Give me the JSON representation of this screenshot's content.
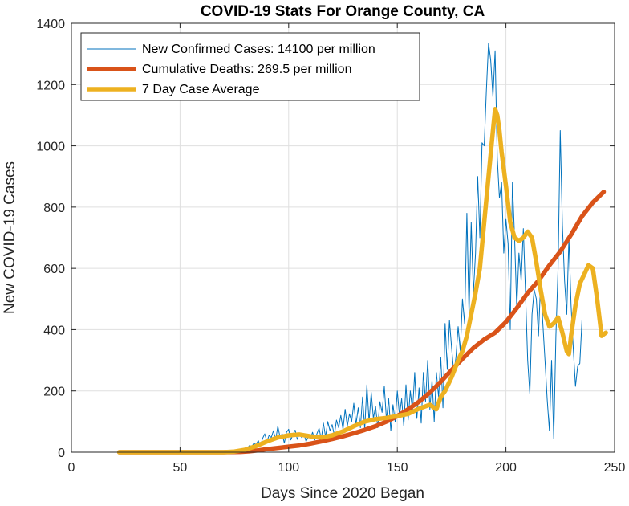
{
  "chart_data": {
    "type": "line",
    "title": "COVID-19 Stats For Orange County, CA",
    "xlabel": "Days Since 2020 Began",
    "ylabel": "New COVID-19 Cases",
    "xlim": [
      0,
      250
    ],
    "ylim": [
      0,
      1400
    ],
    "xticks": [
      0,
      50,
      100,
      150,
      200,
      250
    ],
    "yticks": [
      0,
      200,
      400,
      600,
      800,
      1000,
      1200,
      1400
    ],
    "grid": true,
    "legend_position": "top-left",
    "series": [
      {
        "name": "New Confirmed Cases: 14100 per million",
        "color": "#0072BD",
        "style": "thin",
        "points": [
          [
            22,
            0
          ],
          [
            25,
            0
          ],
          [
            30,
            0
          ],
          [
            35,
            0
          ],
          [
            40,
            0
          ],
          [
            45,
            0
          ],
          [
            50,
            0
          ],
          [
            55,
            0
          ],
          [
            60,
            0
          ],
          [
            65,
            0
          ],
          [
            70,
            0
          ],
          [
            74,
            2
          ],
          [
            76,
            4
          ],
          [
            78,
            6
          ],
          [
            80,
            10
          ],
          [
            81,
            14
          ],
          [
            82,
            22
          ],
          [
            83,
            18
          ],
          [
            84,
            30
          ],
          [
            85,
            25
          ],
          [
            86,
            38
          ],
          [
            87,
            20
          ],
          [
            88,
            45
          ],
          [
            89,
            60
          ],
          [
            90,
            35
          ],
          [
            91,
            55
          ],
          [
            92,
            48
          ],
          [
            93,
            70
          ],
          [
            94,
            40
          ],
          [
            95,
            85
          ],
          [
            96,
            50
          ],
          [
            97,
            60
          ],
          [
            98,
            30
          ],
          [
            99,
            65
          ],
          [
            100,
            75
          ],
          [
            101,
            40
          ],
          [
            102,
            58
          ],
          [
            103,
            72
          ],
          [
            104,
            42
          ],
          [
            105,
            62
          ],
          [
            106,
            48
          ],
          [
            107,
            60
          ],
          [
            108,
            35
          ],
          [
            109,
            50
          ],
          [
            110,
            45
          ],
          [
            111,
            65
          ],
          [
            112,
            40
          ],
          [
            113,
            60
          ],
          [
            114,
            78
          ],
          [
            115,
            42
          ],
          [
            116,
            95
          ],
          [
            117,
            50
          ],
          [
            118,
            100
          ],
          [
            119,
            70
          ],
          [
            120,
            90
          ],
          [
            121,
            55
          ],
          [
            122,
            105
          ],
          [
            123,
            80
          ],
          [
            124,
            120
          ],
          [
            125,
            75
          ],
          [
            126,
            140
          ],
          [
            127,
            85
          ],
          [
            128,
            125
          ],
          [
            129,
            100
          ],
          [
            130,
            160
          ],
          [
            131,
            90
          ],
          [
            132,
            145
          ],
          [
            133,
            80
          ],
          [
            134,
            180
          ],
          [
            135,
            75
          ],
          [
            136,
            220
          ],
          [
            137,
            100
          ],
          [
            138,
            195
          ],
          [
            139,
            110
          ],
          [
            140,
            150
          ],
          [
            141,
            80
          ],
          [
            142,
            165
          ],
          [
            143,
            130
          ],
          [
            144,
            215
          ],
          [
            145,
            105
          ],
          [
            146,
            175
          ],
          [
            147,
            70
          ],
          [
            148,
            155
          ],
          [
            149,
            100
          ],
          [
            150,
            200
          ],
          [
            151,
            120
          ],
          [
            152,
            175
          ],
          [
            153,
            85
          ],
          [
            154,
            220
          ],
          [
            155,
            105
          ],
          [
            156,
            200
          ],
          [
            157,
            135
          ],
          [
            158,
            260
          ],
          [
            159,
            110
          ],
          [
            160,
            210
          ],
          [
            161,
            95
          ],
          [
            162,
            260
          ],
          [
            163,
            165
          ],
          [
            164,
            300
          ],
          [
            165,
            140
          ],
          [
            166,
            235
          ],
          [
            167,
            100
          ],
          [
            168,
            260
          ],
          [
            169,
            180
          ],
          [
            170,
            310
          ],
          [
            171,
            145
          ],
          [
            172,
            420
          ],
          [
            173,
            270
          ],
          [
            174,
            430
          ],
          [
            175,
            340
          ],
          [
            176,
            260
          ],
          [
            177,
            310
          ],
          [
            178,
            410
          ],
          [
            179,
            330
          ],
          [
            180,
            500
          ],
          [
            181,
            420
          ],
          [
            182,
            780
          ],
          [
            183,
            450
          ],
          [
            184,
            750
          ],
          [
            185,
            520
          ],
          [
            186,
            650
          ],
          [
            187,
            900
          ],
          [
            188,
            700
          ],
          [
            189,
            1010
          ],
          [
            190,
            1000
          ],
          [
            191,
            1180
          ],
          [
            192,
            1335
          ],
          [
            193,
            1280
          ],
          [
            194,
            1160
          ],
          [
            195,
            1310
          ],
          [
            196,
            960
          ],
          [
            197,
            830
          ],
          [
            198,
            880
          ],
          [
            199,
            650
          ],
          [
            200,
            760
          ],
          [
            201,
            680
          ],
          [
            202,
            400
          ],
          [
            203,
            880
          ],
          [
            204,
            700
          ],
          [
            205,
            470
          ],
          [
            206,
            650
          ],
          [
            207,
            560
          ],
          [
            208,
            730
          ],
          [
            209,
            520
          ],
          [
            210,
            300
          ],
          [
            211,
            190
          ],
          [
            212,
            450
          ],
          [
            213,
            530
          ],
          [
            214,
            500
          ],
          [
            215,
            380
          ],
          [
            216,
            560
          ],
          [
            217,
            420
          ],
          [
            218,
            300
          ],
          [
            219,
            170
          ],
          [
            220,
            70
          ],
          [
            221,
            300
          ],
          [
            222,
            45
          ],
          [
            223,
            380
          ],
          [
            224,
            600
          ],
          [
            225,
            1050
          ],
          [
            226,
            740
          ],
          [
            227,
            560
          ],
          [
            228,
            450
          ],
          [
            229,
            700
          ],
          [
            230,
            480
          ],
          [
            231,
            340
          ],
          [
            232,
            215
          ],
          [
            233,
            280
          ],
          [
            234,
            290
          ],
          [
            235,
            430
          ]
        ]
      },
      {
        "name": "Cumulative Deaths: 269.5 per million",
        "color": "#D95319",
        "style": "thick",
        "points": [
          [
            22,
            0
          ],
          [
            70,
            0
          ],
          [
            78,
            1
          ],
          [
            82,
            3
          ],
          [
            86,
            6
          ],
          [
            90,
            10
          ],
          [
            95,
            14
          ],
          [
            100,
            18
          ],
          [
            105,
            22
          ],
          [
            110,
            28
          ],
          [
            115,
            35
          ],
          [
            120,
            43
          ],
          [
            125,
            52
          ],
          [
            130,
            62
          ],
          [
            135,
            73
          ],
          [
            140,
            85
          ],
          [
            145,
            100
          ],
          [
            150,
            118
          ],
          [
            155,
            140
          ],
          [
            160,
            165
          ],
          [
            165,
            195
          ],
          [
            170,
            230
          ],
          [
            175,
            268
          ],
          [
            180,
            305
          ],
          [
            185,
            340
          ],
          [
            190,
            368
          ],
          [
            195,
            390
          ],
          [
            200,
            425
          ],
          [
            205,
            470
          ],
          [
            210,
            520
          ],
          [
            215,
            560
          ],
          [
            220,
            610
          ],
          [
            225,
            655
          ],
          [
            230,
            710
          ],
          [
            235,
            770
          ],
          [
            240,
            815
          ],
          [
            245,
            850
          ]
        ]
      },
      {
        "name": "7 Day Case Average",
        "color": "#EDB120",
        "style": "thick",
        "points": [
          [
            22,
            0
          ],
          [
            70,
            0
          ],
          [
            75,
            2
          ],
          [
            80,
            8
          ],
          [
            85,
            20
          ],
          [
            90,
            35
          ],
          [
            95,
            48
          ],
          [
            100,
            55
          ],
          [
            105,
            58
          ],
          [
            110,
            52
          ],
          [
            115,
            48
          ],
          [
            120,
            55
          ],
          [
            125,
            68
          ],
          [
            130,
            85
          ],
          [
            135,
            100
          ],
          [
            140,
            108
          ],
          [
            145,
            112
          ],
          [
            150,
            118
          ],
          [
            155,
            125
          ],
          [
            160,
            142
          ],
          [
            165,
            155
          ],
          [
            168,
            140
          ],
          [
            170,
            180
          ],
          [
            172,
            200
          ],
          [
            175,
            245
          ],
          [
            178,
            300
          ],
          [
            180,
            330
          ],
          [
            182,
            380
          ],
          [
            184,
            450
          ],
          [
            186,
            520
          ],
          [
            188,
            600
          ],
          [
            190,
            750
          ],
          [
            192,
            900
          ],
          [
            194,
            1050
          ],
          [
            195,
            1120
          ],
          [
            196,
            1100
          ],
          [
            197,
            1050
          ],
          [
            198,
            980
          ],
          [
            200,
            870
          ],
          [
            202,
            750
          ],
          [
            204,
            700
          ],
          [
            206,
            690
          ],
          [
            208,
            700
          ],
          [
            210,
            720
          ],
          [
            212,
            700
          ],
          [
            214,
            620
          ],
          [
            216,
            530
          ],
          [
            218,
            450
          ],
          [
            220,
            410
          ],
          [
            222,
            420
          ],
          [
            224,
            440
          ],
          [
            226,
            390
          ],
          [
            228,
            330
          ],
          [
            229,
            320
          ],
          [
            230,
            380
          ],
          [
            232,
            480
          ],
          [
            234,
            550
          ],
          [
            236,
            580
          ],
          [
            238,
            610
          ],
          [
            240,
            600
          ],
          [
            242,
            500
          ],
          [
            244,
            380
          ],
          [
            246,
            390
          ]
        ]
      }
    ]
  }
}
